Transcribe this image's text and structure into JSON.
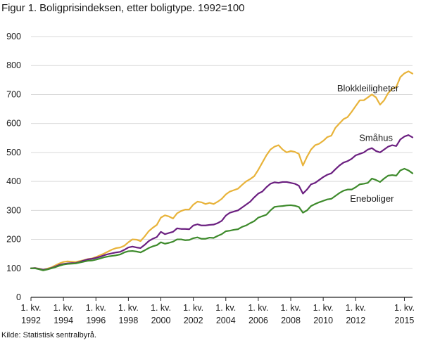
{
  "chart_data": {
    "type": "line",
    "title": "Figur 1. Boligprisindeksen, etter boligtype. 1992=100",
    "xlabel": "",
    "ylabel": "",
    "ylim": [
      0,
      900
    ],
    "yticks": [
      0,
      100,
      200,
      300,
      400,
      500,
      600,
      700,
      800,
      900
    ],
    "grid": true,
    "legend": "direct labels",
    "x_start": "1992 Q1",
    "x_tick_labels": [
      {
        "index": 0,
        "line1": "1. kv.",
        "line2": "1992"
      },
      {
        "index": 8,
        "line1": "1. kv.",
        "line2": "1994"
      },
      {
        "index": 16,
        "line1": "1. kv.",
        "line2": "1996"
      },
      {
        "index": 24,
        "line1": "1. kv.",
        "line2": "1998"
      },
      {
        "index": 32,
        "line1": "1. kv.",
        "line2": "2000"
      },
      {
        "index": 40,
        "line1": "1. kv.",
        "line2": "2002"
      },
      {
        "index": 48,
        "line1": "1. kv.",
        "line2": "2004"
      },
      {
        "index": 56,
        "line1": "1. kv.",
        "line2": "2006"
      },
      {
        "index": 64,
        "line1": "1. kv.",
        "line2": "2008"
      },
      {
        "index": 72,
        "line1": "1. kv.",
        "line2": "2010"
      },
      {
        "index": 80,
        "line1": "1. kv.",
        "line2": "2012"
      },
      {
        "index": 92,
        "line1": "1. kv.",
        "line2": "2015"
      }
    ],
    "series": [
      {
        "name": "Blokkleiligheter",
        "color": "#e8b33a",
        "values": [
          100,
          101,
          99,
          95,
          99,
          103,
          110,
          117,
          122,
          124,
          123,
          122,
          125,
          128,
          132,
          134,
          139,
          145,
          151,
          158,
          165,
          170,
          172,
          178,
          190,
          200,
          199,
          194,
          210,
          228,
          240,
          250,
          275,
          283,
          279,
          272,
          290,
          298,
          303,
          303,
          320,
          330,
          328,
          322,
          326,
          322,
          330,
          340,
          355,
          365,
          370,
          375,
          388,
          400,
          408,
          418,
          440,
          465,
          490,
          510,
          520,
          525,
          510,
          500,
          505,
          502,
          495,
          455,
          485,
          510,
          525,
          530,
          540,
          553,
          558,
          585,
          600,
          615,
          622,
          640,
          660,
          680,
          680,
          690,
          700,
          690,
          665,
          680,
          705,
          720,
          726,
          760,
          773,
          780,
          772
        ]
      },
      {
        "name": "Småhus",
        "color": "#6b1f80",
        "values": [
          100,
          101,
          98,
          95,
          97,
          101,
          106,
          112,
          115,
          117,
          118,
          118,
          122,
          127,
          131,
          133,
          136,
          140,
          145,
          149,
          152,
          155,
          157,
          164,
          172,
          175,
          172,
          170,
          181,
          194,
          202,
          208,
          226,
          218,
          222,
          226,
          238,
          236,
          236,
          235,
          248,
          252,
          248,
          248,
          250,
          251,
          256,
          264,
          282,
          292,
          296,
          300,
          310,
          320,
          330,
          345,
          358,
          365,
          380,
          392,
          397,
          395,
          398,
          398,
          395,
          392,
          385,
          358,
          372,
          390,
          395,
          405,
          415,
          423,
          428,
          442,
          455,
          465,
          470,
          478,
          490,
          495,
          500,
          510,
          515,
          505,
          500,
          510,
          520,
          525,
          522,
          545,
          555,
          560,
          552
        ]
      },
      {
        "name": "Eneboliger",
        "color": "#3d8a2b",
        "values": [
          100,
          100,
          97,
          93,
          96,
          100,
          104,
          109,
          113,
          115,
          116,
          117,
          120,
          123,
          126,
          127,
          130,
          134,
          138,
          141,
          143,
          145,
          148,
          155,
          159,
          160,
          158,
          155,
          162,
          170,
          176,
          180,
          190,
          185,
          188,
          192,
          200,
          200,
          197,
          198,
          204,
          207,
          202,
          202,
          206,
          205,
          212,
          218,
          228,
          230,
          233,
          235,
          243,
          248,
          256,
          263,
          275,
          280,
          285,
          300,
          312,
          314,
          315,
          317,
          318,
          316,
          312,
          292,
          300,
          315,
          322,
          328,
          333,
          338,
          340,
          350,
          360,
          368,
          372,
          372,
          380,
          390,
          392,
          395,
          410,
          405,
          398,
          410,
          420,
          422,
          420,
          438,
          444,
          438,
          428
        ]
      }
    ],
    "label_positions": {
      "Blokkleiligheter": {
        "index": 83,
        "value": 720
      },
      "Småhus": {
        "index": 85,
        "value": 550
      },
      "Eneboliger": {
        "index": 84,
        "value": 340
      }
    }
  },
  "source": "Kilde: Statistisk sentralbyrå."
}
